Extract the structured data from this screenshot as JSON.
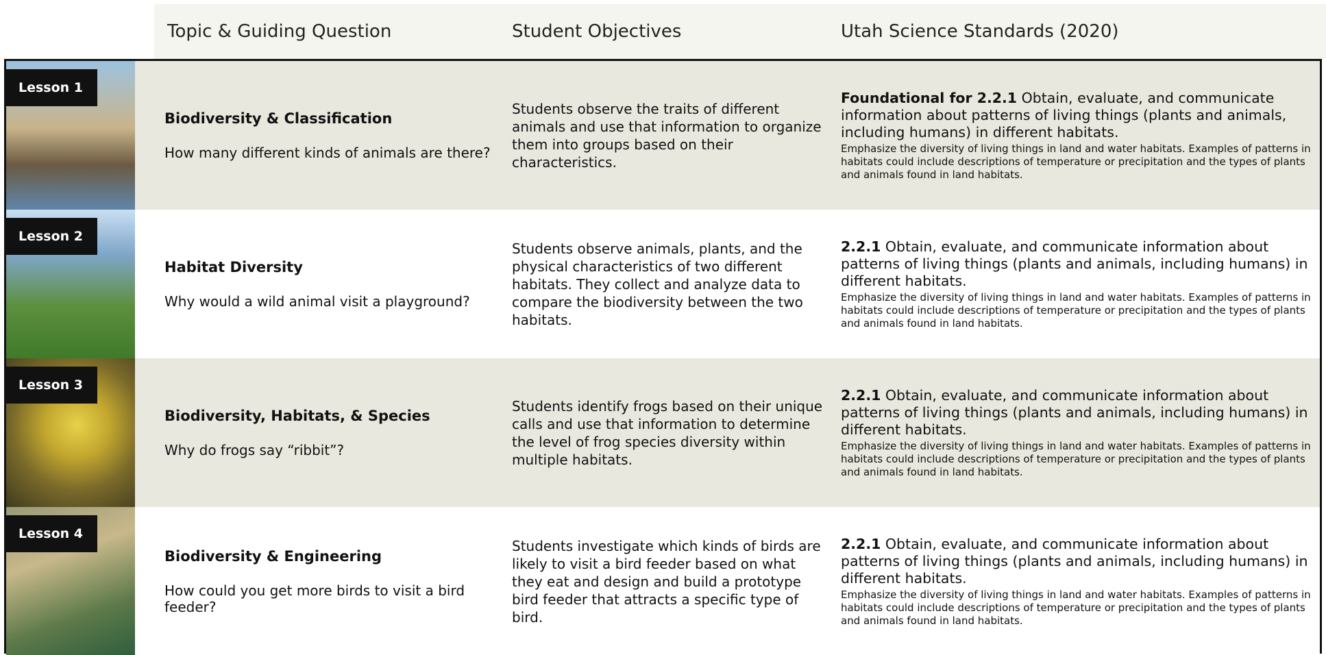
{
  "header": {
    "columns": [
      "Topic & Guiding Question",
      "Student Objectives",
      "Utah Science Standards (2020)"
    ]
  },
  "rows": [
    {
      "lesson": "Lesson 1",
      "topic": "Biodiversity & Classification",
      "question": "How many different kinds of animals are there?",
      "objectives": "Students observe the traits of different animals and use that information to organize them into groups based on their characteristics.",
      "standard_code": "Foundational for 2.2.1",
      "standard_text": "Obtain, evaluate, and communicate information about patterns of living things (plants and animals, including humans) in different habitats.",
      "standard_detail": "Emphasize the diversity of living things in land and water habitats. Examples of patterns in habitats could include descriptions of temperature or precipitation and the types of plants and animals found in land habitats."
    },
    {
      "lesson": "Lesson 2",
      "topic": "Habitat Diversity",
      "question": "Why would a wild animal visit a playground?",
      "objectives": "Students observe animals, plants, and the physical characteristics of two different habitats. They collect and analyze data to compare the biodiversity between the two habitats.",
      "standard_code": "2.2.1",
      "standard_text": "Obtain, evaluate, and communicate information about patterns of living things (plants and animals, including humans) in different habitats.",
      "standard_detail": "Emphasize the diversity of living things in land and water habitats. Examples of patterns in habitats could include descriptions of temperature or precipitation and the types of plants and animals found in land habitats."
    },
    {
      "lesson": "Lesson 3",
      "topic": "Biodiversity, Habitats, & Species",
      "question": "Why do frogs say “ribbit”?",
      "objectives": "Students identify frogs based on their unique calls and use that information to determine the level of frog species diversity within multiple habitats.",
      "standard_code": "2.2.1",
      "standard_text": "Obtain, evaluate, and communicate information about patterns of living things (plants and animals, including humans) in different habitats.",
      "standard_detail": "Emphasize the diversity of living things in land and water habitats. Examples of patterns in habitats could include descriptions of temperature or precipitation and the types of plants and animals found in land habitats."
    },
    {
      "lesson": "Lesson 4",
      "topic": "Biodiversity & Engineering",
      "question": "How could you get more birds to visit a bird feeder?",
      "objectives": "Students investigate which kinds of birds are likely to visit a bird feeder based on what they eat and design and build a prototype bird feeder that attracts a specific type of bird.",
      "standard_code": "2.2.1",
      "standard_text": "Obtain, evaluate, and communicate information about patterns of living things (plants and animals, including humans) in different habitats.",
      "standard_detail": "Emphasize the diversity of living things in land and water habitats. Examples of patterns in habitats could include descriptions of temperature or precipitation and the types of plants and animals found in land habitats."
    }
  ]
}
